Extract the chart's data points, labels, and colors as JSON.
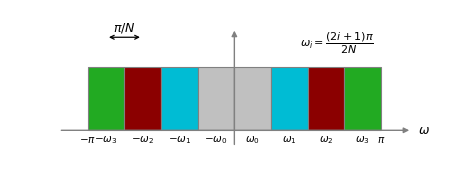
{
  "rect_colors": [
    "#22aa22",
    "#8b0000",
    "#00bcd4",
    "#c0c0c0",
    "#c0c0c0",
    "#00bcd4",
    "#8b0000",
    "#22aa22"
  ],
  "n_rects": 8,
  "x_start": -4,
  "x_end": 4,
  "rect_height": 1.0,
  "bar_bottom": 0.0,
  "tick_labels": [
    "-\\omega_3",
    "-\\omega_2",
    "-\\omega_1",
    "-\\omega_0",
    "\\omega_0",
    "\\omega_1",
    "\\omega_2",
    "\\omega_3"
  ],
  "pi_label_left": "-\\pi",
  "pi_label_right": "\\pi",
  "xlabel": "\\omega",
  "arrow_label": "\\pi/N",
  "bg_color": "#ffffff",
  "axis_color": "#808080",
  "edge_color": "#808080",
  "ylim": [
    -0.32,
    1.75
  ],
  "xlim": [
    -4.8,
    5.1
  ]
}
